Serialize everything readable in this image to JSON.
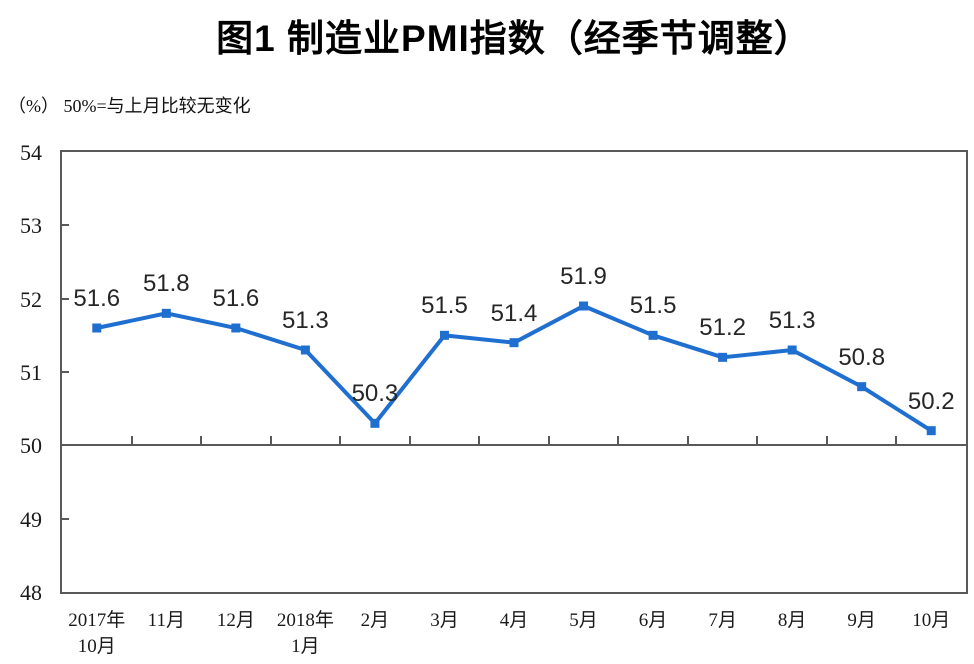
{
  "title": "图1 制造业PMI指数（经季节调整）",
  "subtitle": "（%） 50%=与上月比较无变化",
  "chart_data": {
    "type": "line",
    "title": "图1 制造业PMI指数（经季节调整）",
    "note": "（%） 50%=与上月比较无变化",
    "unit": "%",
    "categories": [
      "2017年\n10月",
      "11月",
      "12月",
      "2018年\n1月",
      "2月",
      "3月",
      "4月",
      "5月",
      "6月",
      "7月",
      "8月",
      "9月",
      "10月"
    ],
    "values": [
      51.6,
      51.8,
      51.6,
      51.3,
      50.3,
      51.5,
      51.4,
      51.9,
      51.5,
      51.2,
      51.3,
      50.8,
      50.2
    ],
    "labels": [
      "51.6",
      "51.8",
      "51.6",
      "51.3",
      "50.3",
      "51.5",
      "51.4",
      "51.9",
      "51.5",
      "51.2",
      "51.3",
      "50.8",
      "50.2"
    ],
    "ylim": [
      48,
      54
    ],
    "yticks": [
      54,
      53,
      52,
      51,
      50,
      49,
      48
    ],
    "baseline": 50,
    "grid": false,
    "legend_position": "none",
    "marker": "square",
    "colors": {
      "line": "#1F6FD0",
      "axis": "#595959",
      "text": "#1a1a1a"
    }
  }
}
